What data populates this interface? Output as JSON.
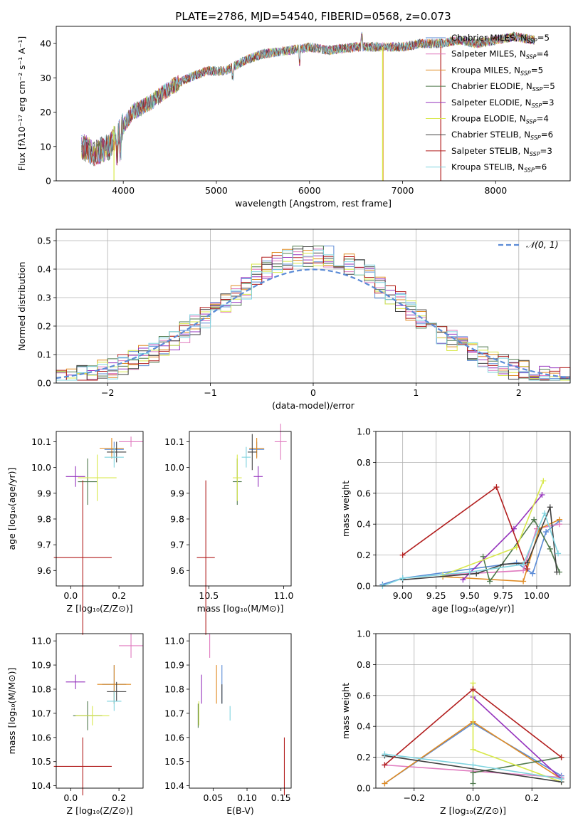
{
  "figure": {
    "title": "PLATE=2786, MJD=54540, FIBERID=0568, z=0.073"
  },
  "colors": {
    "blue": "#5b8bd6",
    "pink": "#e07bbf",
    "orange": "#e08b23",
    "green": "#507a4e",
    "purple": "#9533bd",
    "yellow": "#d8e84a",
    "darkgray": "#404040",
    "red": "#b21e1e",
    "cyan": "#7fd3df"
  },
  "chart_data": [
    {
      "id": "spectrum",
      "type": "line",
      "xlabel": "wavelength [Angstrom, rest frame]",
      "ylabel": "Flux [fλ10⁻¹⁷ erg cm⁻² s⁻¹ A⁻¹]",
      "xlim": [
        3280,
        8800
      ],
      "ylim": [
        0,
        45
      ],
      "xticks": [
        "4000",
        "5000",
        "6000",
        "7000",
        "8000"
      ],
      "yticks": [
        "0",
        "10",
        "20",
        "30",
        "40"
      ],
      "legend_position": "top-right",
      "spectrum_anchors": {
        "x": [
          3550,
          3700,
          3850,
          3950,
          4100,
          4300,
          4500,
          4700,
          4900,
          5100,
          5300,
          5500,
          5800,
          6000,
          6200,
          6500,
          6800,
          7000,
          7200,
          7400,
          7600,
          7800,
          8000,
          8200,
          8420
        ],
        "y": [
          10,
          8,
          10,
          14,
          20,
          23,
          27,
          30,
          32,
          32,
          35,
          37,
          38,
          39,
          38,
          39,
          39,
          39,
          40,
          40,
          41,
          40,
          41,
          42,
          41
        ]
      },
      "series": [
        {
          "name": "Chabrier MILES, N_SSP=5",
          "color_key": "blue"
        },
        {
          "name": "Salpeter MILES, N_SSP=4",
          "color_key": "pink"
        },
        {
          "name": "Kroupa MILES, N_SSP=5",
          "color_key": "orange"
        },
        {
          "name": "Chabrier ELODIE, N_SSP=5",
          "color_key": "green"
        },
        {
          "name": "Salpeter ELODIE, N_SSP=3",
          "color_key": "purple"
        },
        {
          "name": "Kroupa ELODIE, N_SSP=4",
          "color_key": "yellow"
        },
        {
          "name": "Chabrier STELIB, N_SSP=6",
          "color_key": "darkgray"
        },
        {
          "name": "Salpeter STELIB, N_SSP=3",
          "color_key": "red"
        },
        {
          "name": "Kroupa STELIB, N_SSP=6",
          "color_key": "cyan"
        }
      ]
    },
    {
      "id": "residuals",
      "type": "histogram",
      "xlabel": "(data-model)/error",
      "ylabel": "Normed distribution",
      "xlim": [
        -2.5,
        2.5
      ],
      "ylim": [
        0,
        0.54
      ],
      "xticks": [
        "−2",
        "−1",
        "0",
        "1",
        "2"
      ],
      "yticks": [
        "0.0",
        "0.1",
        "0.2",
        "0.3",
        "0.4",
        "0.5"
      ],
      "grid": true,
      "legend": "𝒩(0, 1)",
      "legend_position": "top-right",
      "bin_width": 0.1
    },
    {
      "id": "age-vs-Z",
      "type": "scatter",
      "xlabel": "Z [log₁₀(Z/Z⊙)]",
      "ylabel": "age  [log₁₀(age/yr)]",
      "xlim": [
        -0.06,
        0.3
      ],
      "ylim": [
        9.54,
        10.14
      ],
      "xticks": [
        "0.0",
        "0.2"
      ],
      "yticks": [
        "9.6",
        "9.7",
        "9.8",
        "9.9",
        "10.0",
        "10.1"
      ],
      "points": [
        {
          "color_key": "blue",
          "x": 0.18,
          "y": 10.07,
          "xerr": 0.04,
          "yerr": 0.03
        },
        {
          "color_key": "pink",
          "x": 0.25,
          "y": 10.1,
          "xerr": 0.05,
          "yerr": 0.02
        },
        {
          "color_key": "orange",
          "x": 0.17,
          "y": 10.075,
          "xerr": 0.05,
          "yerr": 0.04
        },
        {
          "color_key": "green",
          "x": 0.07,
          "y": 9.945,
          "xerr": 0.04,
          "yerr": 0.09
        },
        {
          "color_key": "purple",
          "x": 0.02,
          "y": 9.965,
          "xerr": 0.04,
          "yerr": 0.04
        },
        {
          "color_key": "yellow",
          "x": 0.11,
          "y": 9.96,
          "xerr": 0.08,
          "yerr": 0.09
        },
        {
          "color_key": "darkgray",
          "x": 0.19,
          "y": 10.06,
          "xerr": 0.04,
          "yerr": 0.04
        },
        {
          "color_key": "red",
          "x": 0.05,
          "y": 9.65,
          "xerr": 0.12,
          "yerr": 0.3
        },
        {
          "color_key": "cyan",
          "x": 0.18,
          "y": 10.04,
          "xerr": 0.04,
          "yerr": 0.04
        }
      ]
    },
    {
      "id": "age-vs-mass",
      "type": "scatter",
      "xlabel": "mass [log₁₀(M/M⊙)]",
      "xlim": [
        10.37,
        11.05
      ],
      "ylim": [
        9.54,
        10.14
      ],
      "xticks": [
        "10.5",
        "11.0"
      ],
      "yticks": [
        "9.6",
        "9.7",
        "9.8",
        "9.9",
        "10.0",
        "10.1"
      ],
      "points": [
        {
          "color_key": "blue",
          "x": 10.82,
          "y": 10.07,
          "xerr": 0.05,
          "yerr": 0.03
        },
        {
          "color_key": "pink",
          "x": 10.98,
          "y": 10.1,
          "xerr": 0.04,
          "yerr": 0.07
        },
        {
          "color_key": "orange",
          "x": 10.82,
          "y": 10.075,
          "xerr": 0.05,
          "yerr": 0.04
        },
        {
          "color_key": "green",
          "x": 10.69,
          "y": 9.945,
          "xerr": 0.03,
          "yerr": 0.09
        },
        {
          "color_key": "purple",
          "x": 10.83,
          "y": 9.965,
          "xerr": 0.03,
          "yerr": 0.04
        },
        {
          "color_key": "yellow",
          "x": 10.69,
          "y": 9.96,
          "xerr": 0.03,
          "yerr": 0.09
        },
        {
          "color_key": "darkgray",
          "x": 10.79,
          "y": 10.06,
          "xerr": 0.03,
          "yerr": 0.07
        },
        {
          "color_key": "red",
          "x": 10.48,
          "y": 9.65,
          "xerr": 0.06,
          "yerr": 0.3
        },
        {
          "color_key": "cyan",
          "x": 10.75,
          "y": 10.04,
          "xerr": 0.03,
          "yerr": 0.04
        }
      ]
    },
    {
      "id": "weight-vs-age",
      "type": "line",
      "xlabel": "age  [log₁₀(age/yr)]",
      "ylabel": "mass weight",
      "xlim": [
        8.8,
        10.25
      ],
      "ylim": [
        0,
        1
      ],
      "xticks": [
        "9.00",
        "9.25",
        "9.50",
        "9.75",
        "10.00"
      ],
      "yticks": [
        "0.0",
        "0.2",
        "0.4",
        "0.6",
        "0.8",
        "1.0"
      ],
      "grid": true,
      "series": [
        {
          "color_key": "blue",
          "x": [
            8.85,
            9.0,
            9.85,
            9.97,
            10.07,
            10.17
          ],
          "y": [
            0.01,
            0.05,
            0.15,
            0.08,
            0.35,
            0.42
          ]
        },
        {
          "color_key": "pink",
          "x": [
            9.3,
            9.9,
            10.0,
            10.17
          ],
          "y": [
            0.07,
            0.1,
            0.37,
            0.4
          ]
        },
        {
          "color_key": "orange",
          "x": [
            9.3,
            9.9,
            10.02,
            10.17
          ],
          "y": [
            0.06,
            0.03,
            0.37,
            0.43
          ]
        },
        {
          "color_key": "green",
          "x": [
            9.6,
            9.65,
            9.98,
            10.1,
            10.17
          ],
          "y": [
            0.19,
            0.03,
            0.43,
            0.24,
            0.09
          ]
        },
        {
          "color_key": "purple",
          "x": [
            9.45,
            9.83,
            10.04
          ],
          "y": [
            0.04,
            0.37,
            0.59
          ]
        },
        {
          "color_key": "yellow",
          "x": [
            9.3,
            9.85,
            10.05
          ],
          "y": [
            0.07,
            0.25,
            0.68
          ]
        },
        {
          "color_key": "darkgray",
          "x": [
            9.0,
            9.55,
            9.75,
            9.93,
            10.1,
            10.15
          ],
          "y": [
            0.04,
            0.08,
            0.14,
            0.15,
            0.51,
            0.09
          ]
        },
        {
          "color_key": "red",
          "x": [
            9.0,
            9.7,
            9.93
          ],
          "y": [
            0.2,
            0.64,
            0.11
          ]
        },
        {
          "color_key": "cyan",
          "x": [
            8.85,
            9.0,
            9.5,
            9.9,
            10.06,
            10.16
          ],
          "y": [
            0.0,
            0.05,
            0.09,
            0.14,
            0.47,
            0.21
          ]
        }
      ]
    },
    {
      "id": "mass-vs-Z",
      "type": "scatter",
      "xlabel": "Z [log₁₀(Z/Z⊙)]",
      "ylabel": "mass [log₁₀(M/M⊙)]",
      "xlim": [
        -0.06,
        0.3
      ],
      "ylim": [
        10.39,
        11.03
      ],
      "xticks": [
        "0.0",
        "0.2"
      ],
      "yticks": [
        "10.4",
        "10.5",
        "10.6",
        "10.7",
        "10.8",
        "10.9",
        "11.0"
      ],
      "points": [
        {
          "color_key": "blue",
          "x": 0.18,
          "y": 10.82,
          "xerr": 0.05,
          "yerr": 0.08
        },
        {
          "color_key": "pink",
          "x": 0.25,
          "y": 10.98,
          "xerr": 0.05,
          "yerr": 0.05
        },
        {
          "color_key": "orange",
          "x": 0.18,
          "y": 10.82,
          "xerr": 0.07,
          "yerr": 0.08
        },
        {
          "color_key": "green",
          "x": 0.07,
          "y": 10.69,
          "xerr": 0.06,
          "yerr": 0.06
        },
        {
          "color_key": "purple",
          "x": 0.02,
          "y": 10.83,
          "xerr": 0.04,
          "yerr": 0.03
        },
        {
          "color_key": "yellow",
          "x": 0.09,
          "y": 10.69,
          "xerr": 0.07,
          "yerr": 0.04
        },
        {
          "color_key": "darkgray",
          "x": 0.19,
          "y": 10.79,
          "xerr": 0.04,
          "yerr": 0.04
        },
        {
          "color_key": "red",
          "x": 0.05,
          "y": 10.48,
          "xerr": 0.12,
          "yerr": 0.12
        },
        {
          "color_key": "cyan",
          "x": 0.18,
          "y": 10.75,
          "xerr": 0.03,
          "yerr": 0.04
        }
      ]
    },
    {
      "id": "mass-vs-ebv",
      "type": "scatter",
      "xlabel": "E(B-V)",
      "xlim": [
        0.015,
        0.165
      ],
      "ylim": [
        10.39,
        11.03
      ],
      "xticks": [
        "0.05",
        "0.10",
        "0.15"
      ],
      "yticks": [
        "10.4",
        "10.5",
        "10.6",
        "10.7",
        "10.8",
        "10.9",
        "11.0"
      ],
      "points": [
        {
          "color_key": "blue",
          "x": 0.063,
          "y": 10.82,
          "xerr": 0.0,
          "yerr": 0.08
        },
        {
          "color_key": "pink",
          "x": 0.045,
          "y": 10.98,
          "xerr": 0.0,
          "yerr": 0.05
        },
        {
          "color_key": "orange",
          "x": 0.055,
          "y": 10.82,
          "xerr": 0.0,
          "yerr": 0.08
        },
        {
          "color_key": "green",
          "x": 0.028,
          "y": 10.69,
          "xerr": 0.0,
          "yerr": 0.05
        },
        {
          "color_key": "purple",
          "x": 0.033,
          "y": 10.8,
          "xerr": 0.0,
          "yerr": 0.06
        },
        {
          "color_key": "yellow",
          "x": 0.029,
          "y": 10.7,
          "xerr": 0.0,
          "yerr": 0.05
        },
        {
          "color_key": "darkgray",
          "x": 0.063,
          "y": 10.78,
          "xerr": 0.0,
          "yerr": 0.04
        },
        {
          "color_key": "red",
          "x": 0.155,
          "y": 10.48,
          "xerr": 0.0,
          "yerr": 0.12
        },
        {
          "color_key": "cyan",
          "x": 0.075,
          "y": 10.7,
          "xerr": 0.0,
          "yerr": 0.03
        }
      ]
    },
    {
      "id": "weight-vs-Z",
      "type": "line",
      "xlabel": "Z [log₁₀(Z/Z⊙)]",
      "ylabel": "mass weight",
      "xlim": [
        -0.33,
        0.33
      ],
      "ylim": [
        0,
        1
      ],
      "xticks": [
        "−0.2",
        "0.0",
        "0.2"
      ],
      "yticks": [
        "0.0",
        "0.2",
        "0.4",
        "0.6",
        "0.8",
        "1.0"
      ],
      "grid": true,
      "series": [
        {
          "color_key": "blue",
          "x": [
            -0.3,
            0.0,
            0.3
          ],
          "y": [
            0.03,
            0.42,
            0.08
          ]
        },
        {
          "color_key": "pink",
          "x": [
            -0.3,
            0.3
          ],
          "y": [
            0.15,
            0.07
          ]
        },
        {
          "color_key": "orange",
          "x": [
            -0.3,
            0.0,
            0.3
          ],
          "y": [
            0.03,
            0.43,
            0.06
          ]
        },
        {
          "color_key": "green",
          "x": [
            0.0,
            0.0,
            0.3
          ],
          "y": [
            0.03,
            0.1,
            0.2
          ]
        },
        {
          "color_key": "purple",
          "x": [
            0.0,
            0.3
          ],
          "y": [
            0.59,
            0.06
          ]
        },
        {
          "color_key": "yellow",
          "x": [
            0.0,
            0.0,
            0.3
          ],
          "y": [
            0.68,
            0.25,
            0.04
          ]
        },
        {
          "color_key": "darkgray",
          "x": [
            -0.3,
            0.3
          ],
          "y": [
            0.21,
            0.04
          ]
        },
        {
          "color_key": "red",
          "x": [
            -0.3,
            0.0,
            0.3
          ],
          "y": [
            0.15,
            0.64,
            0.2
          ]
        },
        {
          "color_key": "cyan",
          "x": [
            -0.3,
            0.0,
            0.3
          ],
          "y": [
            0.22,
            0.15,
            0.06
          ]
        }
      ]
    }
  ]
}
